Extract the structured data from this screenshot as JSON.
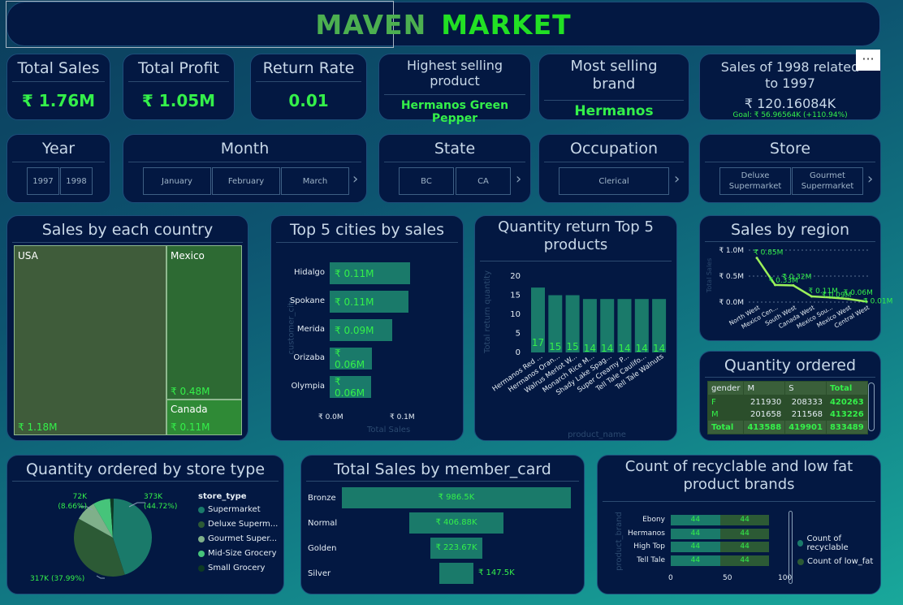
{
  "header": {
    "title_part1": "MAVEN",
    "title_part2": "MARKET"
  },
  "kpis": {
    "total_sales": {
      "label": "Total Sales",
      "value": "₹ 1.76M"
    },
    "total_profit": {
      "label": "Total Profit",
      "value": "₹ 1.05M"
    },
    "return_rate": {
      "label": "Return Rate",
      "value": "0.01"
    },
    "highest_product": {
      "label": "Highest selling product",
      "value": "Hermanos Green Pepper"
    },
    "most_brand": {
      "label": "Most selling brand",
      "value": "Hermanos"
    },
    "sales_1998": {
      "label": "Sales of 1998 related to 1997",
      "value": "₹ 120.16084K",
      "goal": "Goal: ₹ 56.96564K (+110.94%)",
      "more": "···"
    }
  },
  "slicers": {
    "year": {
      "label": "Year",
      "options": [
        "1997",
        "1998"
      ]
    },
    "month": {
      "label": "Month",
      "options": [
        "January",
        "February",
        "March"
      ]
    },
    "state": {
      "label": "State",
      "options": [
        "BC",
        "CA"
      ]
    },
    "occupation": {
      "label": "Occupation",
      "options": [
        "Clerical"
      ]
    },
    "store": {
      "label": "Store",
      "options": [
        "Deluxe Supermarket",
        "Gourmet Supermarket"
      ]
    },
    "arrow": "›"
  },
  "country": {
    "title": "Sales by each country",
    "items": [
      {
        "name": "USA",
        "value": "₹ 1.18M"
      },
      {
        "name": "Mexico",
        "value": "₹ 0.48M"
      },
      {
        "name": "Canada",
        "value": "₹ 0.11M"
      }
    ]
  },
  "cities": {
    "title": "Top 5 cities by sales",
    "ylabel": "customer_city",
    "xlabel": "Total Sales",
    "ticks": [
      "₹ 0.0M",
      "₹ 0.1M"
    ],
    "rows": [
      {
        "name": "Hidalgo",
        "label": "₹ 0.11M",
        "value": 0.112
      },
      {
        "name": "Spokane",
        "label": "₹ 0.11M",
        "value": 0.11
      },
      {
        "name": "Merida",
        "label": "₹ 0.09M",
        "value": 0.087
      },
      {
        "name": "Orizaba",
        "label": "₹ 0.06M",
        "value": 0.059
      },
      {
        "name": "Olympia",
        "label": "₹ 0.06M",
        "value": 0.058
      }
    ]
  },
  "returns": {
    "title": "Quantity return Top 5 products",
    "ylabel": "Total return quantity",
    "xlabel": "product_name",
    "yticks": [
      "20",
      "15",
      "10",
      "5",
      "0"
    ],
    "bars": [
      {
        "name": "Hermanos Red ...",
        "value": 17
      },
      {
        "name": "Hermanos Oran...",
        "value": 15
      },
      {
        "name": "Walrus Merlot W...",
        "value": 15
      },
      {
        "name": "Monarch Rice M...",
        "value": 14
      },
      {
        "name": "Shady Lake Spag...",
        "value": 14
      },
      {
        "name": "Super Creamy P...",
        "value": 14
      },
      {
        "name": "Tell Tale Caulifo...",
        "value": 14
      },
      {
        "name": "Tell Tale Walnuts",
        "value": 14
      }
    ]
  },
  "region": {
    "title": "Sales by region",
    "ylabel": "Total Sales",
    "yticks": [
      "₹ 1.0M",
      "₹ 0.5M",
      "₹ 0.0M"
    ],
    "points": [
      {
        "name": "North West",
        "label": "₹ 0.85M",
        "value": 0.85
      },
      {
        "name": "Mexico Cen...",
        "label": "₹ 0.33M",
        "value": 0.33
      },
      {
        "name": "South West",
        "label": "₹ 0.32M",
        "value": 0.32
      },
      {
        "name": "Canada West",
        "label": "₹ 0.11M",
        "value": 0.11
      },
      {
        "name": "Mexico Sou...",
        "label": "₹ 0.09M",
        "value": 0.09
      },
      {
        "name": "Mexico West",
        "label": "₹ 0.06M",
        "value": 0.06
      },
      {
        "name": "Central West",
        "label": "₹ 0.01M",
        "value": 0.01
      }
    ]
  },
  "qty_ordered": {
    "title": "Quantity ordered",
    "headers": [
      "gender",
      "M",
      "S",
      "Total"
    ],
    "rows": [
      [
        "F",
        "211930",
        "208333",
        "420263"
      ],
      [
        "M",
        "201658",
        "211568",
        "413226"
      ]
    ],
    "total": [
      "Total",
      "413588",
      "419901",
      "833489"
    ]
  },
  "store_type": {
    "title": "Quantity ordered by store type",
    "legend_title": "store_type",
    "labels": [
      "373K (44.72%)",
      "317K (37.99%)",
      "72K (8.66%)"
    ],
    "slices": [
      {
        "name": "Supermarket",
        "value": 44.72,
        "color": "#1a7a6a"
      },
      {
        "name": "Deluxe Superm...",
        "value": 37.99,
        "color": "#2c5a35"
      },
      {
        "name": "Gourmet Super...",
        "value": 8.66,
        "color": "#7fb08a"
      },
      {
        "name": "Mid-Size Grocery",
        "value": 7.2,
        "color": "#46c47a"
      },
      {
        "name": "Small Grocery",
        "value": 1.43,
        "color": "#0e3a24"
      }
    ]
  },
  "member_card": {
    "title": "Total Sales by member_card",
    "rows": [
      {
        "name": "Bronze",
        "label": "₹ 986.5K",
        "value": 986.5
      },
      {
        "name": "Normal",
        "label": "₹ 406.88K",
        "value": 406.88
      },
      {
        "name": "Golden",
        "label": "₹ 223.67K",
        "value": 223.67
      },
      {
        "name": "Silver",
        "label": "₹ 147.5K",
        "value": 147.5
      }
    ]
  },
  "recyclable": {
    "title": "Count of recyclable and low fat product brands",
    "ylabel": "product_brand",
    "xticks": [
      "0",
      "50",
      "100"
    ],
    "legend": [
      "Count of recyclable",
      "Count of low_fat"
    ],
    "rows": [
      {
        "name": "Ebony",
        "a": 44,
        "b": 44
      },
      {
        "name": "Hermanos",
        "a": 44,
        "b": 44
      },
      {
        "name": "High Top",
        "a": 44,
        "b": 44
      },
      {
        "name": "Tell Tale",
        "a": 44,
        "b": 44
      }
    ]
  },
  "chart_data": [
    {
      "type": "bar",
      "title": "Top 5 cities by sales",
      "categories": [
        "Hidalgo",
        "Spokane",
        "Merida",
        "Orizaba",
        "Olympia"
      ],
      "values": [
        0.11,
        0.11,
        0.09,
        0.06,
        0.06
      ],
      "xlabel": "Total Sales",
      "ylabel": "customer_city"
    },
    {
      "type": "bar",
      "title": "Quantity return Top 5 products",
      "categories": [
        "Hermanos Red ...",
        "Hermanos Oran...",
        "Walrus Merlot W...",
        "Monarch Rice M...",
        "Shady Lake Spag...",
        "Super Creamy P...",
        "Tell Tale Caulifo...",
        "Tell Tale Walnuts"
      ],
      "values": [
        17,
        15,
        15,
        14,
        14,
        14,
        14,
        14
      ],
      "ylim": [
        0,
        20
      ]
    },
    {
      "type": "line",
      "title": "Sales by region",
      "categories": [
        "North West",
        "Mexico Cen...",
        "South West",
        "Canada West",
        "Mexico Sou...",
        "Mexico West",
        "Central West"
      ],
      "values": [
        0.85,
        0.33,
        0.32,
        0.11,
        0.09,
        0.06,
        0.01
      ]
    },
    {
      "type": "pie",
      "title": "Quantity ordered by store type",
      "categories": [
        "Supermarket",
        "Deluxe Superm...",
        "Gourmet Super...",
        "Mid-Size Grocery",
        "Small Grocery"
      ],
      "values": [
        44.72,
        37.99,
        8.66,
        7.2,
        1.43
      ]
    },
    {
      "type": "bar",
      "title": "Total Sales by member_card",
      "categories": [
        "Bronze",
        "Normal",
        "Golden",
        "Silver"
      ],
      "values": [
        986.5,
        406.88,
        223.67,
        147.5
      ]
    },
    {
      "type": "bar",
      "title": "Count of recyclable and low fat product brands",
      "categories": [
        "Ebony",
        "Hermanos",
        "High Top",
        "Tell Tale"
      ],
      "series": [
        {
          "name": "Count of recyclable",
          "values": [
            44,
            44,
            44,
            44
          ]
        },
        {
          "name": "Count of low_fat",
          "values": [
            44,
            44,
            44,
            44
          ]
        }
      ]
    }
  ]
}
